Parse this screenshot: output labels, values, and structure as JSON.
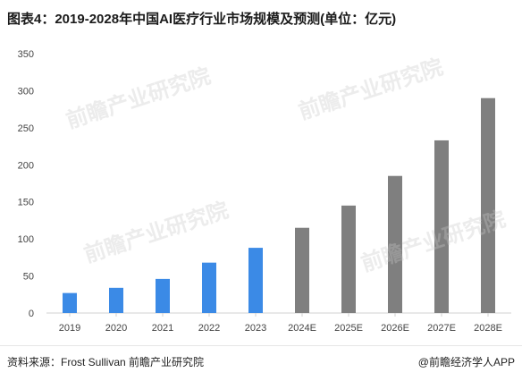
{
  "title": "图表4：2019-2028年中国AI医疗行业市场规模及预测(单位：亿元)",
  "source": "资料来源：Frost Sullivan 前瞻产业研究院",
  "brand": "@前瞻经济学人APP",
  "watermark": "前瞻产业研究院",
  "colors": {
    "actual": "#3b8ae6",
    "forecast": "#7f7f7f",
    "axis": "#d0d0d0",
    "tick_text": "#444444"
  },
  "chart_data": {
    "type": "bar",
    "categories": [
      "2019",
      "2020",
      "2021",
      "2022",
      "2023",
      "2024E",
      "2025E",
      "2026E",
      "2027E",
      "2028E"
    ],
    "series": [
      {
        "values": [
          27,
          34,
          46,
          68,
          88,
          115,
          145,
          185,
          233,
          290
        ],
        "kind": [
          "actual",
          "actual",
          "actual",
          "actual",
          "actual",
          "forecast",
          "forecast",
          "forecast",
          "forecast",
          "forecast"
        ]
      }
    ],
    "ylim": [
      0,
      350
    ],
    "yticks": [
      0,
      50,
      100,
      150,
      200,
      250,
      300,
      350
    ],
    "grid": false,
    "legend": "none",
    "xlabel": "",
    "ylabel": ""
  }
}
